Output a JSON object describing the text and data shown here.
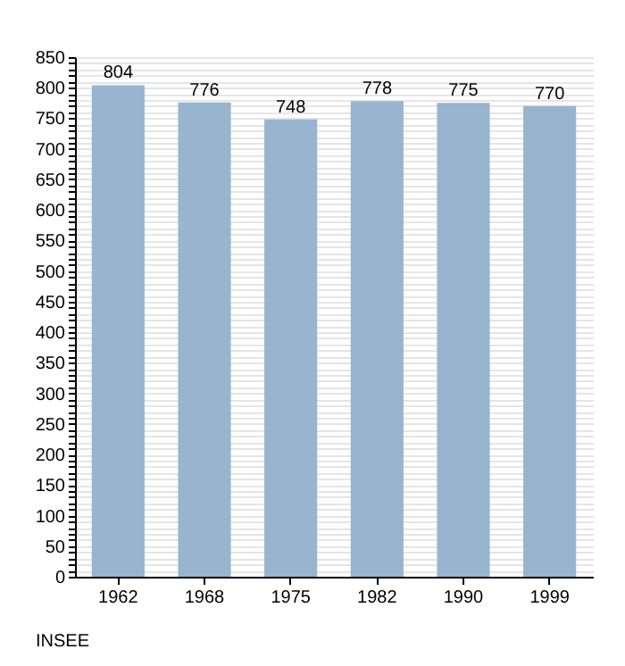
{
  "chart_data": {
    "type": "bar",
    "categories": [
      "1962",
      "1968",
      "1975",
      "1982",
      "1990",
      "1999"
    ],
    "values": [
      804,
      776,
      748,
      778,
      775,
      770
    ],
    "color": "#98b4cf",
    "data_labels": true,
    "grid": "y",
    "ylim": [
      0,
      850
    ],
    "yticks": [
      0,
      {
        "value": 10,
        "label": null
      },
      {
        "value": 20,
        "label": null
      },
      {
        "value": 30,
        "label": null
      },
      {
        "value": 40,
        "label": null
      },
      50,
      {
        "value": 60,
        "label": null
      },
      {
        "value": 70,
        "label": null
      },
      {
        "value": 80,
        "label": null
      },
      {
        "value": 90,
        "label": null
      },
      100,
      {
        "value": 110,
        "label": null
      },
      {
        "value": 120,
        "label": null
      },
      {
        "value": 130,
        "label": null
      },
      {
        "value": 140,
        "label": null
      },
      150,
      {
        "value": 160,
        "label": null
      },
      {
        "value": 170,
        "label": null
      },
      {
        "value": 180,
        "label": null
      },
      {
        "value": 190,
        "label": null
      },
      200,
      {
        "value": 210,
        "label": null
      },
      {
        "value": 220,
        "label": null
      },
      {
        "value": 230,
        "label": null
      },
      {
        "value": 240,
        "label": null
      },
      250,
      {
        "value": 260,
        "label": null
      },
      {
        "value": 270,
        "label": null
      },
      {
        "value": 280,
        "label": null
      },
      {
        "value": 290,
        "label": null
      },
      300,
      {
        "value": 310,
        "label": null
      },
      {
        "value": 320,
        "label": null
      },
      {
        "value": 330,
        "label": null
      },
      {
        "value": 340,
        "label": null
      },
      350,
      {
        "value": 360,
        "label": null
      },
      {
        "value": 370,
        "label": null
      },
      {
        "value": 380,
        "label": null
      },
      {
        "value": 390,
        "label": null
      },
      400,
      {
        "value": 410,
        "label": null
      },
      {
        "value": 420,
        "label": null
      },
      {
        "value": 430,
        "label": null
      },
      {
        "value": 440,
        "label": null
      },
      450,
      {
        "value": 460,
        "label": null
      },
      {
        "value": 470,
        "label": null
      },
      {
        "value": 480,
        "label": null
      },
      {
        "value": 490,
        "label": null
      },
      500,
      {
        "value": 510,
        "label": null
      },
      {
        "value": 520,
        "label": null
      },
      {
        "value": 530,
        "label": null
      },
      {
        "value": 540,
        "label": null
      },
      550,
      {
        "value": 560,
        "label": null
      },
      {
        "value": 570,
        "label": null
      },
      {
        "value": 580,
        "label": null
      },
      {
        "value": 590,
        "label": null
      },
      600,
      {
        "value": 610,
        "label": null
      },
      {
        "value": 620,
        "label": null
      },
      {
        "value": 630,
        "label": null
      },
      {
        "value": 640,
        "label": null
      },
      650,
      {
        "value": 660,
        "label": null
      },
      {
        "value": 670,
        "label": null
      },
      {
        "value": 680,
        "label": null
      },
      {
        "value": 690,
        "label": null
      },
      700,
      {
        "value": 710,
        "label": null
      },
      {
        "value": 720,
        "label": null
      },
      {
        "value": 730,
        "label": null
      },
      {
        "value": 740,
        "label": null
      },
      750,
      {
        "value": 760,
        "label": null
      },
      {
        "value": 770,
        "label": null
      },
      {
        "value": 780,
        "label": null
      },
      {
        "value": 790,
        "label": null
      },
      800,
      {
        "value": 810,
        "label": null
      },
      {
        "value": 820,
        "label": null
      },
      {
        "value": 830,
        "label": null
      },
      {
        "value": 840,
        "label": null
      },
      850
    ],
    "annotations": [
      "INSEE"
    ]
  }
}
